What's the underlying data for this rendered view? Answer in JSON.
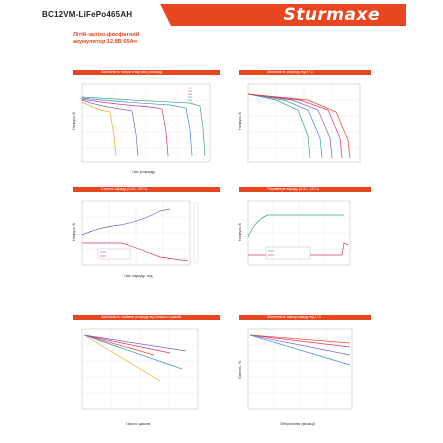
{
  "header": {
    "model": "BC12VM-LiFePo465AH",
    "brand": "Sturmaxe",
    "subtitle_line1": "Літій-залізо-фосфатний",
    "subtitle_line2": "акумулятор 12.8В 65Ач"
  },
  "colors": {
    "accent": "#e8461f",
    "text": "#222222"
  },
  "panels": [
    {
      "id": "discharge-voltage-time",
      "title": "Залежність напруги від часу розряду",
      "ylabel": "Напруга, В",
      "xlabel": "Час розряду"
    },
    {
      "id": "discharge-temperature",
      "title": "Залежність розряду від t,°С",
      "ylabel": "Напруга, В",
      "xlabel": ""
    },
    {
      "id": "charge-stages",
      "title": "Ступінь заряду (0.5C, 25°C)",
      "ylabel": "Напруга, В",
      "xlabel": "Час заряду, год"
    },
    {
      "id": "charge-parameters",
      "title": "Параметри заряду (0.5C, 25°C)",
      "ylabel": "Напруга, В",
      "xlabel": ""
    },
    {
      "id": "cycles-depth",
      "title": "Залежність глибини розряду від кількості циклів",
      "ylabel": "",
      "xlabel": "Число циклів"
    },
    {
      "id": "self-discharge",
      "title": "Залежність саморозряду від t,°С",
      "ylabel": "Ємність, %",
      "xlabel": "Зберігання (місяці)"
    }
  ]
}
